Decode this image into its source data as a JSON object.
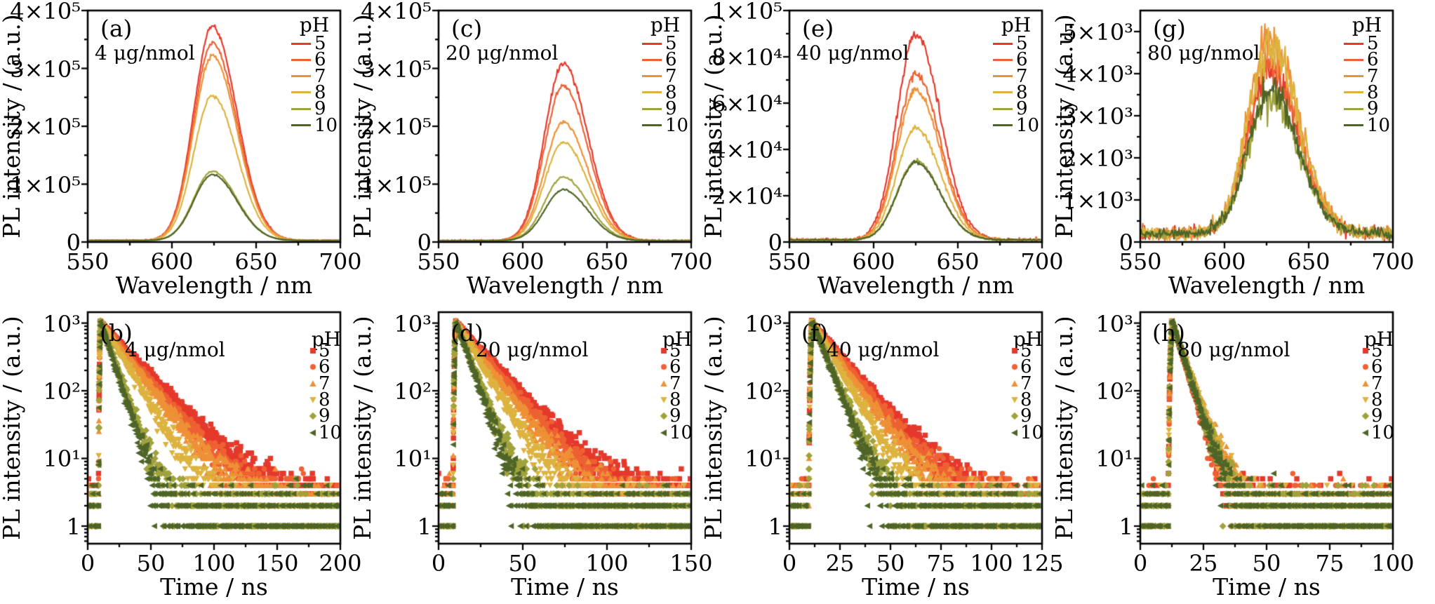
{
  "figure": {
    "background": "#ffffff",
    "text_color": "#000000",
    "ph_values": [
      "5",
      "6",
      "7",
      "8",
      "9",
      "10"
    ],
    "series_colors": [
      "#e5392c",
      "#ee6133",
      "#ee9136",
      "#ddb33f",
      "#a0a23c",
      "#4f6528"
    ],
    "series_markers": [
      "square",
      "circle",
      "triangle-up",
      "triangle-down",
      "diamond",
      "triangle-left"
    ]
  },
  "chart_data": [
    {
      "id": "a",
      "type": "line",
      "panel_label": "(a)",
      "annotation": "4 μg/nmol",
      "xlabel": "Wavelength / nm",
      "ylabel": "PL intensity / (a.u.)",
      "legend_title": "pH",
      "xlim": [
        550,
        700
      ],
      "xticks": [
        550,
        600,
        650,
        700
      ],
      "xtick_labels": [
        "550",
        "600",
        "650",
        "700"
      ],
      "ylim": [
        0,
        400000
      ],
      "yticks": [
        0,
        100000,
        200000,
        300000,
        400000
      ],
      "ytick_labels": [
        "0",
        "1×10⁵",
        "2×10⁵",
        "3×10⁵",
        "4×10⁵"
      ],
      "peak_center_nm": 624,
      "sigma_left_nm": 11,
      "sigma_right_nm": 14.5,
      "baseline": 2500,
      "noise_frac": 0.005,
      "series": [
        {
          "name": "5",
          "color": "#e5392c",
          "peak_intensity": 370000
        },
        {
          "name": "6",
          "color": "#ee6133",
          "peak_intensity": 341000
        },
        {
          "name": "7",
          "color": "#ee9136",
          "peak_intensity": 320000
        },
        {
          "name": "8",
          "color": "#ddb33f",
          "peak_intensity": 250000
        },
        {
          "name": "9",
          "color": "#a0a23c",
          "peak_intensity": 120000
        },
        {
          "name": "10",
          "color": "#4f6528",
          "peak_intensity": 114000
        }
      ]
    },
    {
      "id": "c",
      "type": "line",
      "panel_label": "(c)",
      "annotation": "20 μg/nmol",
      "xlabel": "Wavelength / nm",
      "ylabel": "PL intensity / (a.u.)",
      "legend_title": "pH",
      "xlim": [
        550,
        700
      ],
      "xticks": [
        550,
        600,
        650,
        700
      ],
      "xtick_labels": [
        "550",
        "600",
        "650",
        "700"
      ],
      "ylim": [
        0,
        400000
      ],
      "yticks": [
        0,
        100000,
        200000,
        300000,
        400000
      ],
      "ytick_labels": [
        "0",
        "1×10⁵",
        "2×10⁵",
        "3×10⁵",
        "4×10⁵"
      ],
      "peak_center_nm": 624,
      "sigma_left_nm": 11,
      "sigma_right_nm": 14.5,
      "baseline": 2200,
      "noise_frac": 0.008,
      "series": [
        {
          "name": "5",
          "color": "#e5392c",
          "peak_intensity": 305000
        },
        {
          "name": "6",
          "color": "#ee6133",
          "peak_intensity": 268000
        },
        {
          "name": "7",
          "color": "#ee9136",
          "peak_intensity": 205000
        },
        {
          "name": "8",
          "color": "#ddb33f",
          "peak_intensity": 170000
        },
        {
          "name": "9",
          "color": "#a0a23c",
          "peak_intensity": 110000
        },
        {
          "name": "10",
          "color": "#4f6528",
          "peak_intensity": 88000
        }
      ]
    },
    {
      "id": "e",
      "type": "line",
      "panel_label": "(e)",
      "annotation": "40 μg/nmol",
      "xlabel": "Wavelength / nm",
      "ylabel": "PL intensity / (a.u.)",
      "legend_title": "pH",
      "xlim": [
        550,
        700
      ],
      "xticks": [
        550,
        600,
        650,
        700
      ],
      "xtick_labels": [
        "550",
        "600",
        "650",
        "700"
      ],
      "ylim": [
        0,
        100000
      ],
      "yticks": [
        0,
        20000,
        40000,
        60000,
        80000,
        100000
      ],
      "ytick_labels": [
        "0",
        "2×10⁴",
        "4×10⁴",
        "6×10⁴",
        "8×10⁴",
        "1×10⁵"
      ],
      "peak_center_nm": 625,
      "sigma_left_nm": 11,
      "sigma_right_nm": 14.5,
      "baseline": 900,
      "noise_frac": 0.014,
      "series": [
        {
          "name": "5",
          "color": "#e5392c",
          "peak_intensity": 89000
        },
        {
          "name": "6",
          "color": "#ee6133",
          "peak_intensity": 71500
        },
        {
          "name": "7",
          "color": "#ee9136",
          "peak_intensity": 64500
        },
        {
          "name": "8",
          "color": "#ddb33f",
          "peak_intensity": 48500
        },
        {
          "name": "9",
          "color": "#a0a23c",
          "peak_intensity": 34000
        },
        {
          "name": "10",
          "color": "#4f6528",
          "peak_intensity": 33500
        }
      ]
    },
    {
      "id": "g",
      "type": "line",
      "panel_label": "(g)",
      "annotation": "80 μg/nmol",
      "xlabel": "Wavelength / nm",
      "ylabel": "PL intensity / (a.u.)",
      "legend_title": "pH",
      "xlim": [
        550,
        700
      ],
      "xticks": [
        550,
        600,
        650,
        700
      ],
      "xtick_labels": [
        "550",
        "600",
        "650",
        "700"
      ],
      "ylim": [
        0,
        5500
      ],
      "yticks": [
        0,
        1000,
        2000,
        3000,
        4000,
        5000
      ],
      "ytick_labels": [
        "0",
        "1×10³",
        "2×10³",
        "3×10³",
        "4×10³",
        "5×10³"
      ],
      "peak_center_nm": 627,
      "sigma_left_nm": 13,
      "sigma_right_nm": 17,
      "baseline": 200,
      "noise_frac": 0.06,
      "series": [
        {
          "name": "5",
          "color": "#e5392c",
          "peak_intensity": 3900
        },
        {
          "name": "6",
          "color": "#ee6133",
          "peak_intensity": 3950
        },
        {
          "name": "7",
          "color": "#ee9136",
          "peak_intensity": 4650
        },
        {
          "name": "8",
          "color": "#ddb33f",
          "peak_intensity": 4500
        },
        {
          "name": "9",
          "color": "#a0a23c",
          "peak_intensity": 3250
        },
        {
          "name": "10",
          "color": "#4f6528",
          "peak_intensity": 3400
        }
      ]
    },
    {
      "id": "b",
      "type": "scatter-log",
      "panel_label": "(b)",
      "annotation": "4 μg/nmol",
      "xlabel": "Time / ns",
      "ylabel": "PL intensity / (a.u.)",
      "legend_title": "pH",
      "xlim": [
        0,
        200
      ],
      "xticks": [
        0,
        50,
        100,
        150,
        200
      ],
      "xtick_labels": [
        "0",
        "50",
        "100",
        "150",
        "200"
      ],
      "ylim_log": [
        0.55,
        1450
      ],
      "yticks_log": [
        1,
        10,
        100,
        1000
      ],
      "ytick_labels": [
        "1",
        "10¹",
        "10²",
        "10³"
      ],
      "rise_ns": 10,
      "peak_counts": 1050,
      "series": [
        {
          "name": "5",
          "color": "#e5392c",
          "marker": "square",
          "lifetime_ns": 22,
          "background_counts": 2.2
        },
        {
          "name": "6",
          "color": "#ee6133",
          "marker": "circle",
          "lifetime_ns": 19.5,
          "background_counts": 1.8
        },
        {
          "name": "7",
          "color": "#ee9136",
          "marker": "triangle-up",
          "lifetime_ns": 18,
          "background_counts": 1.5
        },
        {
          "name": "8",
          "color": "#ddb33f",
          "marker": "triangle-down",
          "lifetime_ns": 14,
          "background_counts": 1.4
        },
        {
          "name": "9",
          "color": "#a0a23c",
          "marker": "diamond",
          "lifetime_ns": 8.5,
          "background_counts": 1.3
        },
        {
          "name": "10",
          "color": "#4f6528",
          "marker": "triangle-left",
          "lifetime_ns": 7.5,
          "background_counts": 1.3
        }
      ]
    },
    {
      "id": "d",
      "type": "scatter-log",
      "panel_label": "(d)",
      "annotation": "20 μg/nmol",
      "xlabel": "Time / ns",
      "ylabel": "PL intensity / (a.u.)",
      "legend_title": "pH",
      "xlim": [
        0,
        150
      ],
      "xticks": [
        0,
        50,
        100,
        150
      ],
      "xtick_labels": [
        "0",
        "50",
        "100",
        "150"
      ],
      "ylim_log": [
        0.55,
        1450
      ],
      "yticks_log": [
        1,
        10,
        100,
        1000
      ],
      "ytick_labels": [
        "1",
        "10¹",
        "10²",
        "10³"
      ],
      "rise_ns": 10,
      "peak_counts": 1050,
      "series": [
        {
          "name": "5",
          "color": "#e5392c",
          "marker": "square",
          "lifetime_ns": 16,
          "background_counts": 2.2
        },
        {
          "name": "6",
          "color": "#ee6133",
          "marker": "circle",
          "lifetime_ns": 14.5,
          "background_counts": 1.8
        },
        {
          "name": "7",
          "color": "#ee9136",
          "marker": "triangle-up",
          "lifetime_ns": 13,
          "background_counts": 1.5
        },
        {
          "name": "8",
          "color": "#ddb33f",
          "marker": "triangle-down",
          "lifetime_ns": 10.5,
          "background_counts": 1.4
        },
        {
          "name": "9",
          "color": "#a0a23c",
          "marker": "diamond",
          "lifetime_ns": 7,
          "background_counts": 1.3
        },
        {
          "name": "10",
          "color": "#4f6528",
          "marker": "triangle-left",
          "lifetime_ns": 6.2,
          "background_counts": 1.3
        }
      ]
    },
    {
      "id": "f",
      "type": "scatter-log",
      "panel_label": "(f)",
      "annotation": "40 μg/nmol",
      "xlabel": "Time / ns",
      "ylabel": "PL intensity / (a.u.)",
      "legend_title": "pH",
      "xlim": [
        0,
        125
      ],
      "xticks": [
        0,
        25,
        50,
        75,
        100,
        125
      ],
      "xtick_labels": [
        "0",
        "25",
        "50",
        "75",
        "100",
        "125"
      ],
      "ylim_log": [
        0.55,
        1450
      ],
      "yticks_log": [
        1,
        10,
        100,
        1000
      ],
      "ytick_labels": [
        "1",
        "10¹",
        "10²",
        "10³"
      ],
      "rise_ns": 11,
      "peak_counts": 1050,
      "series": [
        {
          "name": "5",
          "color": "#e5392c",
          "marker": "square",
          "lifetime_ns": 12.5,
          "background_counts": 2.0
        },
        {
          "name": "6",
          "color": "#ee6133",
          "marker": "circle",
          "lifetime_ns": 11.5,
          "background_counts": 1.7
        },
        {
          "name": "7",
          "color": "#ee9136",
          "marker": "triangle-up",
          "lifetime_ns": 10.5,
          "background_counts": 1.5
        },
        {
          "name": "8",
          "color": "#ddb33f",
          "marker": "triangle-down",
          "lifetime_ns": 8.5,
          "background_counts": 1.4
        },
        {
          "name": "9",
          "color": "#a0a23c",
          "marker": "diamond",
          "lifetime_ns": 6.3,
          "background_counts": 1.3
        },
        {
          "name": "10",
          "color": "#4f6528",
          "marker": "triangle-left",
          "lifetime_ns": 5.8,
          "background_counts": 1.3
        }
      ]
    },
    {
      "id": "h",
      "type": "scatter-log",
      "panel_label": "(h)",
      "annotation": "80 μg/nmol",
      "xlabel": "Time / ns",
      "ylabel": "PL intensity / (a.u.)",
      "legend_title": "pH",
      "xlim": [
        0,
        100
      ],
      "xticks": [
        0,
        25,
        50,
        75,
        100
      ],
      "xtick_labels": [
        "0",
        "25",
        "50",
        "75",
        "100"
      ],
      "ylim_log": [
        0.55,
        1450
      ],
      "yticks_log": [
        1,
        10,
        100,
        1000
      ],
      "ytick_labels": [
        "1",
        "10¹",
        "10²",
        "10³"
      ],
      "rise_ns": 12.5,
      "peak_counts": 1050,
      "series": [
        {
          "name": "5",
          "color": "#e5392c",
          "marker": "square",
          "lifetime_ns": 3.8,
          "background_counts": 1.6
        },
        {
          "name": "6",
          "color": "#ee6133",
          "marker": "circle",
          "lifetime_ns": 3.6,
          "background_counts": 1.5
        },
        {
          "name": "7",
          "color": "#ee9136",
          "marker": "triangle-up",
          "lifetime_ns": 4.3,
          "background_counts": 1.4
        },
        {
          "name": "8",
          "color": "#ddb33f",
          "marker": "triangle-down",
          "lifetime_ns": 4.1,
          "background_counts": 1.4
        },
        {
          "name": "9",
          "color": "#a0a23c",
          "marker": "diamond",
          "lifetime_ns": 3.9,
          "background_counts": 1.3
        },
        {
          "name": "10",
          "color": "#4f6528",
          "marker": "triangle-left",
          "lifetime_ns": 3.7,
          "background_counts": 1.3
        }
      ]
    }
  ]
}
